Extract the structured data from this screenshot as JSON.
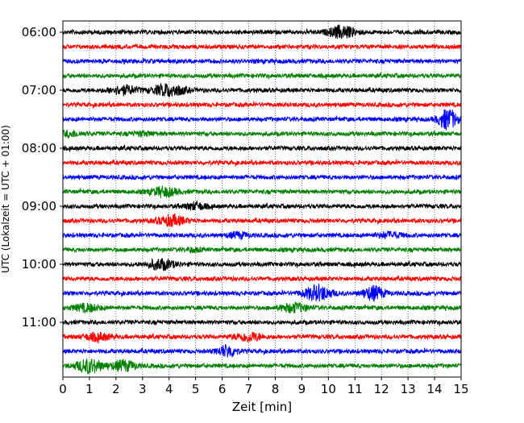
{
  "chart_data": {
    "type": "line",
    "title": "",
    "xlabel": "Zeit  [min]",
    "ylabel": "UTC (Lokalzeit = UTC + 01:00)",
    "xlim": [
      0,
      15
    ],
    "xticks": [
      "0",
      "1",
      "2",
      "3",
      "4",
      "5",
      "6",
      "7",
      "8",
      "9",
      "10",
      "11",
      "12",
      "13",
      "14",
      "15"
    ],
    "yticks": [
      "06:00",
      "07:00",
      "08:00",
      "09:00",
      "10:00",
      "11:00"
    ],
    "trace_colors": [
      "#000000",
      "#ff0000",
      "#0000ff",
      "#008000"
    ],
    "trace_count": 24,
    "trace_interval_min": 15,
    "grid": "vertical dotted",
    "events": [
      {
        "trace": 0,
        "minute": 10.5,
        "amp": 7,
        "width": 0.5
      },
      {
        "trace": 4,
        "minute": 2.3,
        "amp": 5,
        "width": 0.5
      },
      {
        "trace": 4,
        "minute": 4.0,
        "amp": 7,
        "width": 0.6
      },
      {
        "trace": 6,
        "minute": 14.5,
        "amp": 12,
        "width": 0.35
      },
      {
        "trace": 7,
        "minute": 0.3,
        "amp": 3,
        "width": 0.4
      },
      {
        "trace": 7,
        "minute": 3.0,
        "amp": 2,
        "width": 0.5
      },
      {
        "trace": 11,
        "minute": 3.8,
        "amp": 5,
        "width": 0.5
      },
      {
        "trace": 12,
        "minute": 5.0,
        "amp": 4,
        "width": 0.4
      },
      {
        "trace": 13,
        "minute": 4.1,
        "amp": 6,
        "width": 0.5
      },
      {
        "trace": 14,
        "minute": 6.6,
        "amp": 3,
        "width": 0.4
      },
      {
        "trace": 14,
        "minute": 12.3,
        "amp": 3,
        "width": 0.5
      },
      {
        "trace": 15,
        "minute": 4.9,
        "amp": 2,
        "width": 0.3
      },
      {
        "trace": 16,
        "minute": 3.7,
        "amp": 6,
        "width": 0.5
      },
      {
        "trace": 18,
        "minute": 9.6,
        "amp": 9,
        "width": 0.5
      },
      {
        "trace": 18,
        "minute": 11.7,
        "amp": 8,
        "width": 0.4
      },
      {
        "trace": 19,
        "minute": 0.9,
        "amp": 4,
        "width": 0.5
      },
      {
        "trace": 19,
        "minute": 8.7,
        "amp": 5,
        "width": 0.5
      },
      {
        "trace": 21,
        "minute": 1.3,
        "amp": 4,
        "width": 0.5
      },
      {
        "trace": 21,
        "minute": 7.0,
        "amp": 5,
        "width": 0.5
      },
      {
        "trace": 22,
        "minute": 6.2,
        "amp": 7,
        "width": 0.35
      },
      {
        "trace": 23,
        "minute": 1.0,
        "amp": 8,
        "width": 0.5
      },
      {
        "trace": 23,
        "minute": 2.3,
        "amp": 6,
        "width": 0.45
      }
    ]
  }
}
